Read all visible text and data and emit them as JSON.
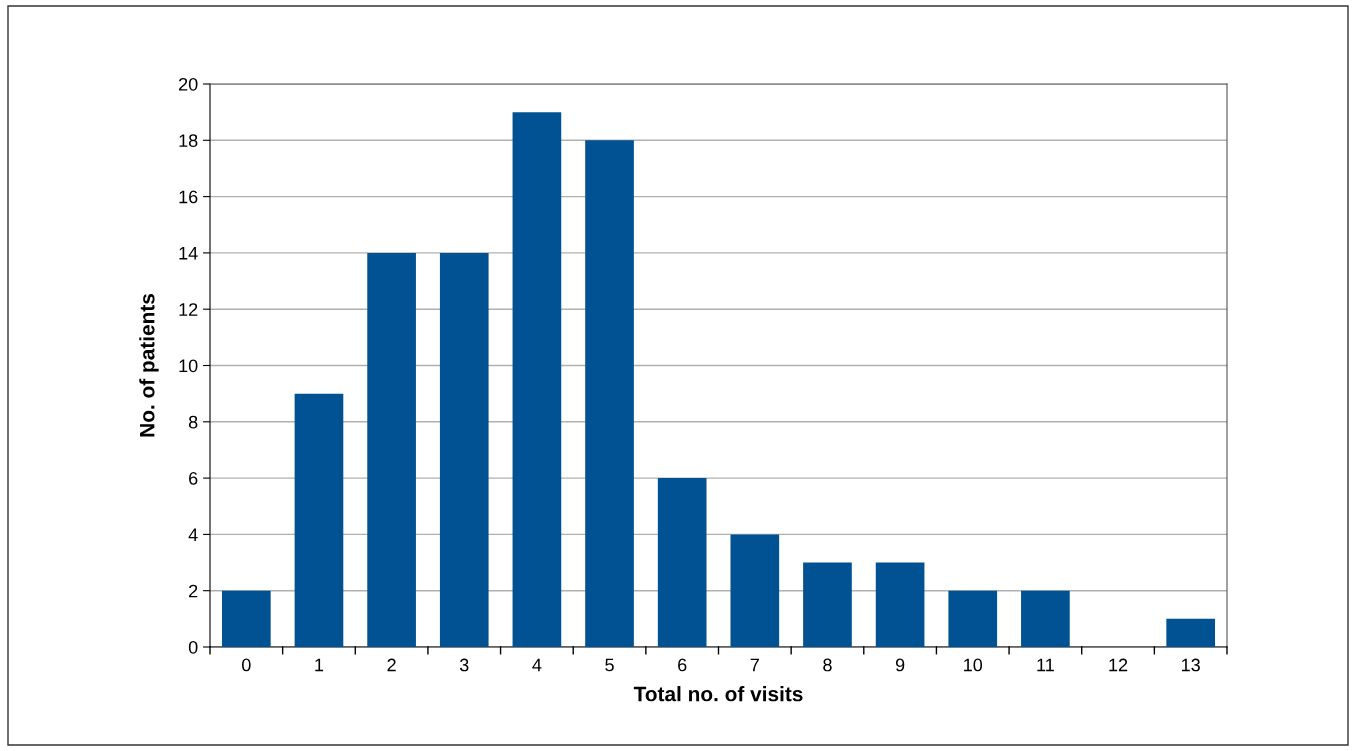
{
  "chart_data": {
    "type": "bar",
    "xlabel": "Total no. of visits",
    "ylabel": "No. of patients",
    "categories": [
      "0",
      "1",
      "2",
      "3",
      "4",
      "5",
      "6",
      "7",
      "8",
      "9",
      "10",
      "11",
      "12",
      "13"
    ],
    "values": [
      2,
      9,
      14,
      14,
      19,
      18,
      6,
      4,
      3,
      3,
      2,
      2,
      0,
      1
    ],
    "color": "#005293",
    "ylim": [
      0,
      20
    ],
    "yticks": [
      0,
      2,
      4,
      6,
      8,
      10,
      12,
      14,
      16,
      18,
      20
    ],
    "grid": "y"
  }
}
